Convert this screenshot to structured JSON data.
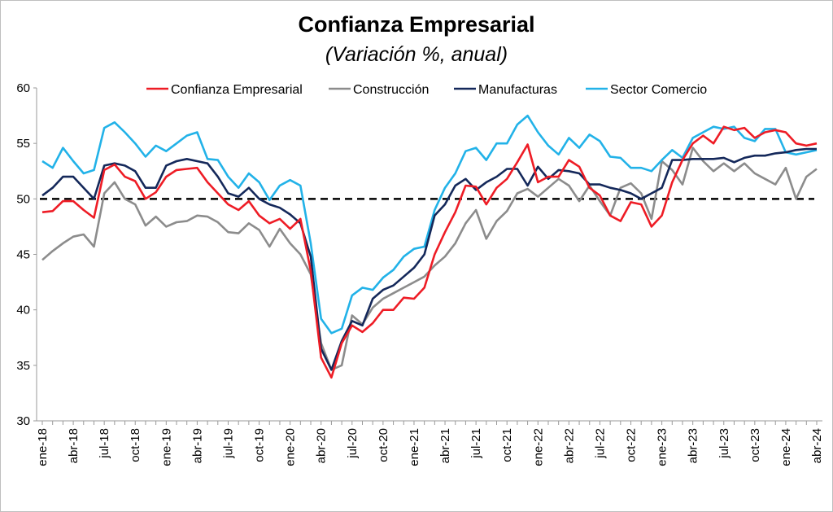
{
  "chart_data": {
    "type": "line",
    "title": "Confianza Empresarial",
    "subtitle": "(Variación %, anual)",
    "ylim": [
      30,
      60
    ],
    "y_ticks": [
      30,
      35,
      40,
      45,
      50,
      55,
      60
    ],
    "x_tick_labels": [
      "ene-18",
      "abr-18",
      "jul-18",
      "oct-18",
      "ene-19",
      "abr-19",
      "jul-19",
      "oct-19",
      "ene-20",
      "abr-20",
      "jul-20",
      "oct-20",
      "ene-21",
      "abr-21",
      "jul-21",
      "oct-21",
      "ene-22",
      "abr-22",
      "jul-22",
      "oct-22",
      "ene-23",
      "abr-23",
      "jul-23",
      "oct-23",
      "ene-24",
      "abr-24"
    ],
    "grid": false,
    "legend_position": "top",
    "reference_line": {
      "y": 50,
      "style": "dashed",
      "color": "#000000"
    },
    "series": [
      {
        "name": "Confianza Empresarial",
        "color": "#ee1c25",
        "values": [
          48.8,
          48.9,
          49.8,
          49.8,
          49.0,
          48.3,
          52.6,
          53.1,
          52.0,
          51.6,
          50.0,
          50.6,
          52.0,
          52.6,
          52.7,
          52.8,
          51.5,
          50.5,
          49.5,
          49.0,
          49.8,
          48.5,
          47.8,
          48.2,
          47.3,
          48.2,
          43.5,
          35.7,
          33.9,
          37.0,
          38.6,
          38.0,
          38.8,
          40.0,
          40.0,
          41.1,
          41.0,
          42.0,
          45.0,
          47.0,
          48.8,
          51.2,
          51.1,
          49.5,
          51.0,
          51.8,
          53.3,
          54.9,
          51.5,
          52.0,
          52.0,
          53.5,
          52.9,
          51.0,
          50.3,
          48.5,
          48.0,
          49.7,
          49.5,
          47.5,
          48.5,
          51.5,
          53.5,
          55.0,
          55.7,
          55.0,
          56.5,
          56.2,
          56.4,
          55.5,
          56.0,
          56.2,
          56.0,
          55.0,
          54.8,
          55.0
        ]
      },
      {
        "name": "Construcción",
        "color": "#8c8c8c",
        "values": [
          44.5,
          45.3,
          46.0,
          46.6,
          46.8,
          45.7,
          50.5,
          51.5,
          50.0,
          49.5,
          47.6,
          48.4,
          47.5,
          47.9,
          48.0,
          48.5,
          48.4,
          47.9,
          47.0,
          46.9,
          47.8,
          47.2,
          45.7,
          47.3,
          46.0,
          45.0,
          43.2,
          37.0,
          34.6,
          35.0,
          39.5,
          38.7,
          40.2,
          41.0,
          41.5,
          42.0,
          42.5,
          43.0,
          44.0,
          44.8,
          46.0,
          47.8,
          49.0,
          46.4,
          48.0,
          48.9,
          50.5,
          50.9,
          50.2,
          51.0,
          51.8,
          51.2,
          49.8,
          51.2,
          49.8,
          48.5,
          51.0,
          51.4,
          50.5,
          48.2,
          53.4,
          52.6,
          51.3,
          54.6,
          53.4,
          52.5,
          53.2,
          52.5,
          53.2,
          52.3,
          51.8,
          51.3,
          52.8,
          50.0,
          52.0,
          52.7
        ]
      },
      {
        "name": "Manufacturas",
        "color": "#14285a",
        "values": [
          50.3,
          51.0,
          52.0,
          52.0,
          51.0,
          50.0,
          53.0,
          53.2,
          53.0,
          52.5,
          51.0,
          51.0,
          53.0,
          53.4,
          53.6,
          53.4,
          53.2,
          52.0,
          50.5,
          50.2,
          51.0,
          50.0,
          49.5,
          49.2,
          48.6,
          47.8,
          44.8,
          36.5,
          34.6,
          37.2,
          39.0,
          38.6,
          41.0,
          41.8,
          42.2,
          43.0,
          43.8,
          45.0,
          48.5,
          49.5,
          51.2,
          51.8,
          50.8,
          51.5,
          52.0,
          52.7,
          52.7,
          51.2,
          52.9,
          51.8,
          52.6,
          52.5,
          52.3,
          51.3,
          51.3,
          51.0,
          50.8,
          50.5,
          50.0,
          50.5,
          51.0,
          53.5,
          53.5,
          53.6,
          53.6,
          53.6,
          53.7,
          53.3,
          53.7,
          53.9,
          53.9,
          54.1,
          54.2,
          54.4,
          54.5,
          54.5
        ]
      },
      {
        "name": "Sector Comercio",
        "color": "#22b2e8",
        "values": [
          53.4,
          52.8,
          54.6,
          53.4,
          52.3,
          52.6,
          56.4,
          56.9,
          56.0,
          55.0,
          53.8,
          54.8,
          54.3,
          55.0,
          55.7,
          56.0,
          53.6,
          53.5,
          52.0,
          51.0,
          52.3,
          51.5,
          49.9,
          51.2,
          51.7,
          51.2,
          46.0,
          39.2,
          37.9,
          38.3,
          41.3,
          42.0,
          41.8,
          42.9,
          43.6,
          44.8,
          45.5,
          45.7,
          49.0,
          51.0,
          52.3,
          54.3,
          54.6,
          53.5,
          55.0,
          55.0,
          56.7,
          57.5,
          56.0,
          54.8,
          54.0,
          55.5,
          54.6,
          55.8,
          55.2,
          53.8,
          53.7,
          52.8,
          52.8,
          52.5,
          53.5,
          54.4,
          53.7,
          55.5,
          56.0,
          56.5,
          56.3,
          56.5,
          55.5,
          55.2,
          56.3,
          56.3,
          54.2,
          54.0,
          54.2,
          54.4
        ]
      }
    ]
  }
}
